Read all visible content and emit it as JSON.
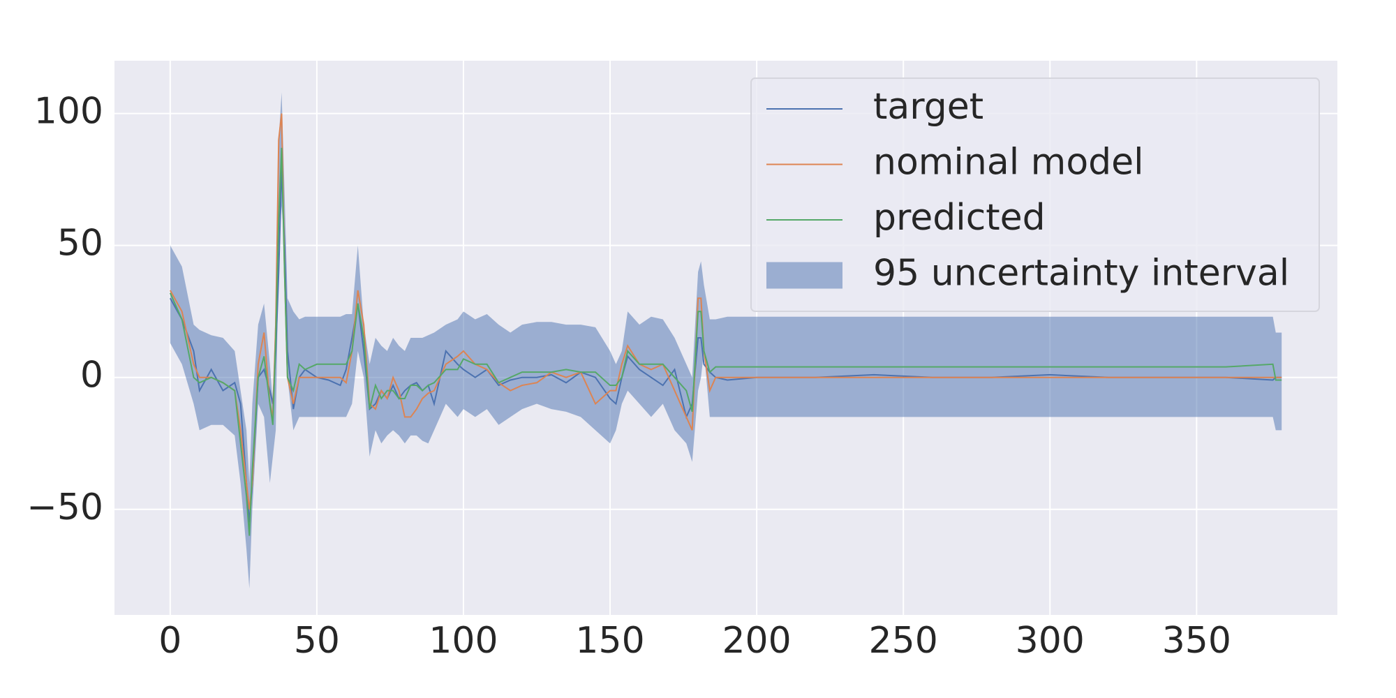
{
  "chart_data": {
    "type": "line",
    "x": [
      0,
      4,
      8,
      10,
      14,
      18,
      22,
      24,
      26,
      27,
      28,
      30,
      32,
      34,
      35,
      36,
      37,
      38,
      39,
      40,
      42,
      44,
      46,
      50,
      54,
      58,
      60,
      62,
      64,
      66,
      68,
      70,
      72,
      74,
      76,
      78,
      80,
      82,
      84,
      86,
      88,
      90,
      94,
      98,
      100,
      104,
      108,
      112,
      116,
      120,
      125,
      130,
      135,
      140,
      145,
      150,
      152,
      154,
      156,
      160,
      164,
      168,
      172,
      176,
      178,
      180,
      181,
      182,
      184,
      186,
      190,
      200,
      220,
      240,
      260,
      280,
      300,
      320,
      340,
      360,
      376,
      377,
      379
    ],
    "series": [
      {
        "name": "target",
        "color": "#4c72b0",
        "values": [
          30,
          22,
          10,
          -5,
          3,
          -5,
          -2,
          -10,
          -40,
          -55,
          -40,
          0,
          3,
          -5,
          -10,
          10,
          40,
          80,
          50,
          10,
          -12,
          0,
          3,
          0,
          -1,
          -3,
          3,
          15,
          28,
          10,
          -12,
          -10,
          -5,
          -8,
          -3,
          -8,
          -5,
          -3,
          -2,
          -5,
          -3,
          -10,
          10,
          5,
          3,
          0,
          3,
          -3,
          -1,
          0,
          0,
          1,
          -2,
          2,
          0,
          -8,
          -10,
          0,
          8,
          3,
          0,
          -3,
          3,
          -15,
          -10,
          15,
          15,
          5,
          2,
          0,
          -1,
          0,
          0,
          1,
          0,
          0,
          1,
          0,
          0,
          0,
          -1,
          0,
          0
        ]
      },
      {
        "name": "nominal model",
        "color": "#dd8452",
        "values": [
          33,
          25,
          5,
          0,
          0,
          -2,
          -5,
          -20,
          -40,
          -50,
          -40,
          5,
          17,
          -10,
          -15,
          20,
          90,
          100,
          40,
          0,
          -10,
          0,
          0,
          0,
          0,
          0,
          -2,
          10,
          33,
          20,
          -10,
          -12,
          -5,
          -8,
          0,
          -5,
          -15,
          -15,
          -12,
          -8,
          -6,
          -5,
          5,
          8,
          10,
          5,
          3,
          -2,
          -5,
          -3,
          -2,
          2,
          0,
          2,
          -10,
          -5,
          -5,
          5,
          12,
          5,
          3,
          5,
          -5,
          -15,
          -20,
          30,
          30,
          10,
          -5,
          0,
          0,
          0,
          0,
          0,
          0,
          0,
          0,
          0,
          0,
          0,
          0,
          0,
          0
        ]
      },
      {
        "name": "predicted",
        "color": "#55a868",
        "values": [
          32,
          22,
          0,
          -2,
          0,
          -2,
          -5,
          -25,
          -45,
          -60,
          -35,
          0,
          8,
          -10,
          -18,
          15,
          60,
          87,
          40,
          0,
          -5,
          5,
          3,
          5,
          5,
          5,
          5,
          10,
          28,
          15,
          -12,
          -3,
          -8,
          -5,
          -5,
          -8,
          -8,
          -3,
          -3,
          -5,
          -3,
          -2,
          3,
          3,
          7,
          5,
          5,
          -2,
          0,
          2,
          2,
          2,
          3,
          2,
          2,
          -3,
          -3,
          0,
          10,
          5,
          5,
          5,
          0,
          -5,
          -13,
          25,
          25,
          10,
          2,
          4,
          4,
          4,
          4,
          4,
          4,
          4,
          4,
          4,
          4,
          4,
          5,
          -1,
          -1
        ]
      }
    ],
    "band": {
      "name": "95 uncertainty interval",
      "color": "#4c72b0",
      "upper": [
        50,
        42,
        20,
        18,
        16,
        15,
        10,
        -5,
        -20,
        -40,
        -10,
        20,
        28,
        5,
        -10,
        30,
        90,
        108,
        70,
        30,
        25,
        22,
        23,
        23,
        23,
        23,
        24,
        24,
        50,
        20,
        5,
        15,
        12,
        10,
        15,
        12,
        10,
        15,
        15,
        15,
        16,
        17,
        20,
        22,
        25,
        22,
        24,
        20,
        17,
        20,
        21,
        21,
        20,
        20,
        19,
        10,
        5,
        10,
        25,
        20,
        23,
        22,
        15,
        5,
        0,
        40,
        44,
        35,
        22,
        22,
        23,
        23,
        23,
        23,
        23,
        23,
        23,
        23,
        23,
        23,
        23,
        17,
        17
      ],
      "lower": [
        13,
        5,
        -10,
        -20,
        -18,
        -18,
        -22,
        -40,
        -65,
        -80,
        -50,
        -10,
        -15,
        -40,
        -30,
        -20,
        50,
        65,
        50,
        0,
        -20,
        -15,
        -15,
        -15,
        -15,
        -15,
        -15,
        -10,
        10,
        0,
        -30,
        -20,
        -25,
        -22,
        -20,
        -22,
        -25,
        -22,
        -22,
        -24,
        -25,
        -20,
        -10,
        -15,
        -12,
        -15,
        -12,
        -18,
        -15,
        -12,
        -10,
        -12,
        -13,
        -15,
        -20,
        -25,
        -20,
        -10,
        -5,
        -10,
        -15,
        -10,
        -20,
        -25,
        -32,
        -5,
        0,
        10,
        -15,
        -15,
        -15,
        -15,
        -15,
        -15,
        -15,
        -15,
        -15,
        -15,
        -15,
        -15,
        -15,
        -20,
        -20
      ]
    },
    "xlim": [
      -19,
      398
    ],
    "ylim": [
      -90,
      120
    ],
    "xticks": [
      0,
      50,
      100,
      150,
      200,
      250,
      300,
      350
    ],
    "yticks": [
      {
        "value": -50,
        "label": "−50"
      },
      0,
      50,
      100
    ],
    "grid": true,
    "legend": "upper right"
  }
}
